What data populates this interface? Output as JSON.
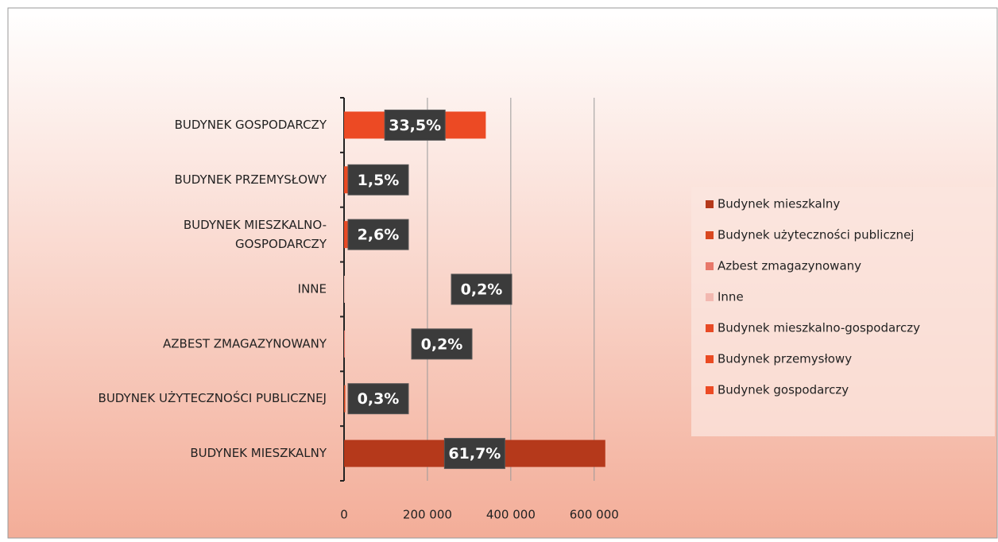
{
  "chart_data": {
    "type": "bar",
    "orientation": "horizontal",
    "categories": [
      "BUDYNEK MIESZKALNY",
      "BUDYNEK UŻYTECZNOŚCI PUBLICZNEJ",
      "AZBEST ZMAGAZYNOWANY",
      "INNE",
      "BUDYNEK MIESZKALNO-GOSPODARCZY",
      "BUDYNEK PRZEMYSŁOWY",
      "BUDYNEK GOSPODARCZY"
    ],
    "values": [
      626700,
      3000,
      2000,
      2000,
      26400,
      15200,
      340000
    ],
    "value_labels": [
      "61,7%",
      "0,3%",
      "0,2%",
      "0,2%",
      "2,6%",
      "1,5%",
      "33,5%"
    ],
    "series": [
      {
        "name": "Budynek mieszkalny",
        "color": "#b5391b"
      },
      {
        "name": "Budynek użyteczności publicznej",
        "color": "#d9471f"
      },
      {
        "name": "Azbest zmagazynowany",
        "color": "#e8786a"
      },
      {
        "name": "Inne",
        "color": "#f2b8b0"
      },
      {
        "name": "Budynek mieszkalno-gospodarczy",
        "color": "#e84a25"
      },
      {
        "name": "Budynek przemysłowy",
        "color": "#ea4a22"
      },
      {
        "name": "Budynek gospodarczy",
        "color": "#ec4a24"
      }
    ],
    "xlim": [
      0,
      650000
    ],
    "xticks": [
      0,
      {
        "value": 200000,
        "label": "200 000"
      },
      {
        "value": 400000,
        "label": "400 000"
      },
      {
        "value": 600000,
        "label": "600 000"
      }
    ],
    "grid": true,
    "legend": "right"
  }
}
